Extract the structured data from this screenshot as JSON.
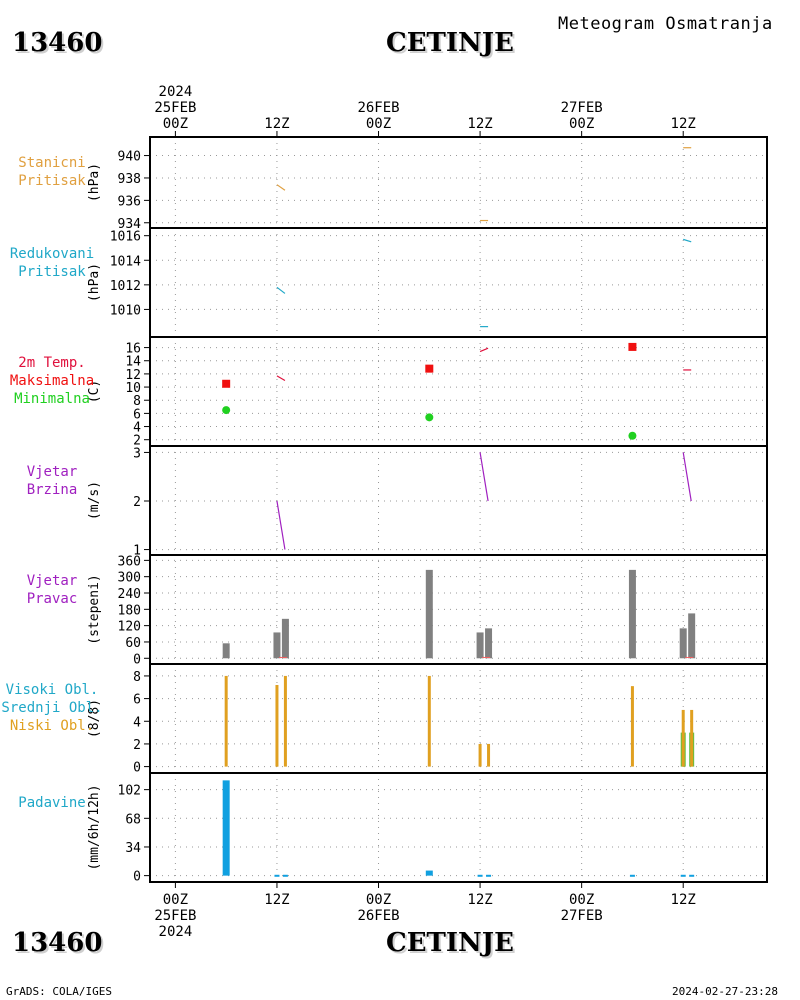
{
  "header": {
    "station_id": "13460",
    "city": "CETINJE",
    "title": "Meteogram Osmatranja"
  },
  "footer": {
    "station_id": "13460",
    "city": "CETINJE",
    "credit": "GrADS: COLA/IGES",
    "timestamp": "2024-02-27-23:28"
  },
  "colors": {
    "pressure": "#e0a040",
    "reduced": "#20a8c8",
    "temp_label": "#e0103c",
    "tmax": "#f01010",
    "tmin": "#20d020",
    "wind": "#a020c0",
    "dir_bar": "#808080",
    "cloud_low": "#e0a020",
    "cloud_mid": "#60c040",
    "precip": "#10a0e0",
    "precip_label": "#20a8c8"
  },
  "chart_data": [
    {
      "type": "line",
      "panel": "stanicni-pritisak",
      "labels": [
        "Stanicni",
        "Pritisak"
      ],
      "ylabel": "(hPa)",
      "ylim": [
        933.8,
        941.3
      ],
      "yticks": [
        934,
        936,
        938,
        940
      ],
      "segments": [
        {
          "x": [
            12,
            13
          ],
          "y": [
            937.4,
            936.9
          ]
        },
        {
          "x": [
            36,
            37
          ],
          "y": [
            934.2,
            934.2
          ]
        },
        {
          "x": [
            60,
            61
          ],
          "y": [
            940.7,
            940.7
          ]
        }
      ]
    },
    {
      "type": "line",
      "panel": "redukovani-pritisak",
      "labels": [
        "Redukovani",
        "Pritisak"
      ],
      "ylabel": "(hPa)",
      "ylim": [
        1008,
        1016.3
      ],
      "yticks": [
        1010,
        1012,
        1014,
        1016
      ],
      "segments": [
        {
          "x": [
            12,
            13
          ],
          "y": [
            1011.8,
            1011.3
          ]
        },
        {
          "x": [
            36,
            37
          ],
          "y": [
            1008.6,
            1008.6
          ]
        },
        {
          "x": [
            60,
            61
          ],
          "y": [
            1015.7,
            1015.5
          ]
        }
      ]
    },
    {
      "type": "scatter",
      "panel": "temperatura",
      "labels": [
        "2m Temp.",
        "Maksimalna",
        "Minimalna"
      ],
      "ylabel": "(C)",
      "ylim": [
        1.5,
        17
      ],
      "yticks": [
        2,
        4,
        6,
        8,
        10,
        12,
        14,
        16
      ],
      "temp_segments": [
        {
          "x": [
            12,
            13
          ],
          "y": [
            11.7,
            11.0
          ]
        },
        {
          "x": [
            36,
            37
          ],
          "y": [
            15.4,
            15.9
          ]
        },
        {
          "x": [
            60,
            61
          ],
          "y": [
            12.6,
            12.6
          ]
        }
      ],
      "tmax": {
        "x": [
          6,
          30,
          54
        ],
        "y": [
          10.5,
          12.8,
          16.1
        ]
      },
      "tmin": {
        "x": [
          6,
          30,
          54
        ],
        "y": [
          6.5,
          5.4,
          2.6
        ]
      }
    },
    {
      "type": "line",
      "panel": "vjetar-brzina",
      "labels": [
        "Vjetar",
        "Brzina"
      ],
      "ylabel": "(m/s)",
      "ylim": [
        0.95,
        3.05
      ],
      "yticks": [
        1,
        2,
        3
      ],
      "segments": [
        {
          "x": [
            12,
            13
          ],
          "y": [
            2.0,
            1.0
          ]
        },
        {
          "x": [
            36,
            37
          ],
          "y": [
            3.0,
            2.0
          ]
        },
        {
          "x": [
            60,
            61
          ],
          "y": [
            3.0,
            2.0
          ]
        }
      ]
    },
    {
      "type": "bar",
      "panel": "vjetar-pravac",
      "labels": [
        "Vjetar",
        "Pravac"
      ],
      "ylabel": "(stepeni)",
      "ylim": [
        -10,
        365
      ],
      "yticks": [
        0,
        60,
        120,
        180,
        240,
        300,
        360
      ],
      "x": [
        6,
        12,
        13,
        30,
        36,
        37,
        54,
        60,
        61
      ],
      "values": [
        55,
        95,
        145,
        325,
        95,
        110,
        325,
        110,
        165
      ]
    },
    {
      "type": "bar",
      "panel": "oblaci",
      "labels": [
        "Visoki Obl.",
        "Srednji Obl.",
        "Niski Obl."
      ],
      "ylabel": "(8/8)",
      "ylim": [
        -0.3,
        8.7
      ],
      "yticks": [
        0,
        2,
        4,
        6,
        8
      ],
      "low": {
        "x": [
          6,
          12,
          13,
          30,
          36,
          37,
          54,
          60,
          61
        ],
        "values": [
          8,
          7.2,
          8,
          8,
          2,
          2,
          7.1,
          5,
          5
        ]
      },
      "mid": {
        "x": [
          60,
          61
        ],
        "values": [
          3,
          3
        ]
      }
    },
    {
      "type": "bar",
      "panel": "padavine",
      "labels": [
        "Padavine"
      ],
      "ylabel": "(mm/6h/12h)",
      "ylim": [
        -4,
        117
      ],
      "yticks": [
        0,
        34,
        68,
        102
      ],
      "x": [
        6,
        12,
        13,
        30,
        36,
        37,
        54,
        60,
        61
      ],
      "values": [
        113,
        1,
        1,
        6,
        1,
        1,
        1,
        1,
        1
      ]
    }
  ],
  "time_axis": {
    "top_labels": [
      {
        "h": 0,
        "lines": [
          "2024",
          "25FEB",
          "00Z"
        ]
      },
      {
        "h": 12,
        "lines": [
          "12Z"
        ]
      },
      {
        "h": 24,
        "lines": [
          "26FEB",
          "00Z"
        ]
      },
      {
        "h": 36,
        "lines": [
          "12Z"
        ]
      },
      {
        "h": 48,
        "lines": [
          "27FEB",
          "00Z"
        ]
      },
      {
        "h": 60,
        "lines": [
          "12Z"
        ]
      }
    ],
    "bottom_labels": [
      {
        "h": 0,
        "lines": [
          "00Z",
          "25FEB",
          "2024"
        ]
      },
      {
        "h": 12,
        "lines": [
          "12Z"
        ]
      },
      {
        "h": 24,
        "lines": [
          "00Z",
          "26FEB"
        ]
      },
      {
        "h": 36,
        "lines": [
          "12Z"
        ]
      },
      {
        "h": 48,
        "lines": [
          "00Z",
          "27FEB"
        ]
      },
      {
        "h": 60,
        "lines": [
          "12Z"
        ]
      }
    ]
  }
}
